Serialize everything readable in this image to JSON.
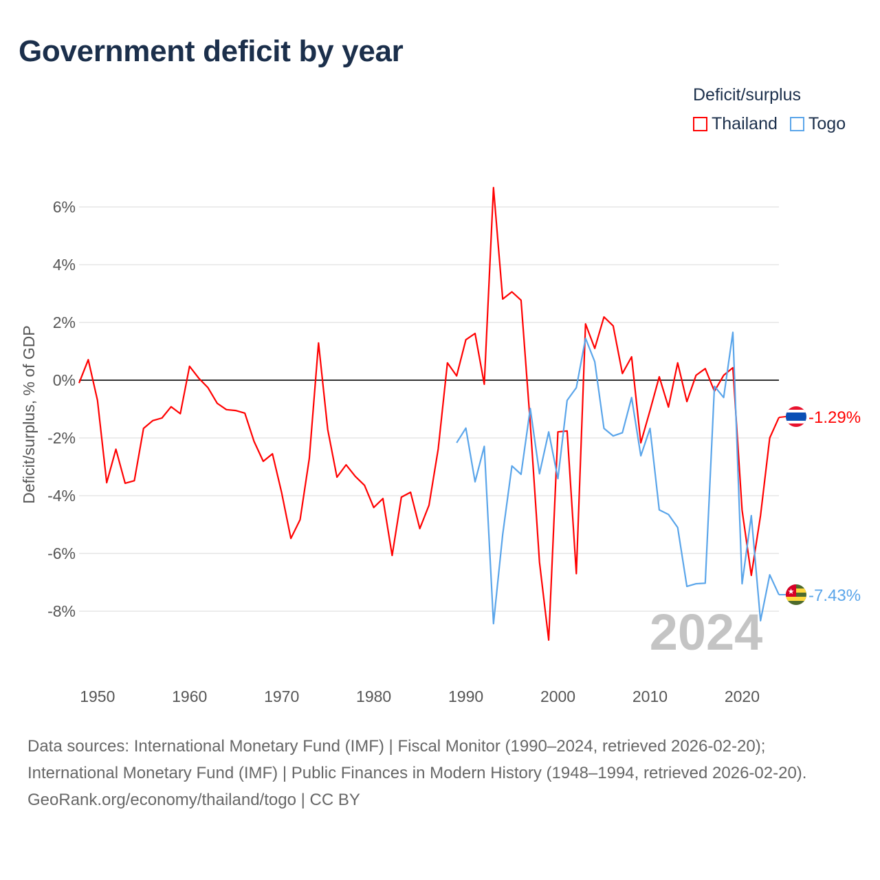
{
  "header": {
    "title": "Government deficit by year"
  },
  "legend": {
    "title": "Deficit/surplus"
  },
  "year_watermark": "2024",
  "footer": {
    "sources": "Data sources: International Monetary Fund (IMF) | Fiscal Monitor (1990–2024, retrieved 2026-02-20); International Monetary Fund (IMF) | Public Finances in Modern History (1948–1994, retrieved 2026-02-20).",
    "credit": "GeoRank.org/economy/thailand/togo | CC BY"
  },
  "chart_data": {
    "type": "line",
    "title": "Government deficit by year",
    "xlabel": "",
    "ylabel": "Deficit/surplus, % of GDP",
    "xlim": [
      1948,
      2024
    ],
    "ylim": [
      -10,
      7
    ],
    "x_ticks": [
      1950,
      1960,
      1970,
      1980,
      1990,
      2000,
      2010,
      2020
    ],
    "y_ticks": [
      6,
      4,
      2,
      0,
      -2,
      -4,
      -6,
      -8
    ],
    "y_tick_labels": [
      "6%",
      "4%",
      "2%",
      "0%",
      "-2%",
      "-4%",
      "-6%",
      "-8%"
    ],
    "grid": true,
    "legend_position": "top-right",
    "series": [
      {
        "name": "Thailand",
        "color": "#ff0000",
        "end_label": "-1.29%",
        "start_year": 1948,
        "values": [
          -0.1,
          0.71,
          -0.7,
          -3.55,
          -2.39,
          -3.57,
          -3.48,
          -1.67,
          -1.4,
          -1.31,
          -0.92,
          -1.16,
          0.48,
          0.07,
          -0.26,
          -0.8,
          -1.02,
          -1.05,
          -1.14,
          -2.12,
          -2.81,
          -2.55,
          -3.9,
          -5.48,
          -4.83,
          -2.71,
          1.29,
          -1.71,
          -3.36,
          -2.93,
          -3.33,
          -3.64,
          -4.41,
          -4.1,
          -6.07,
          -4.05,
          -3.88,
          -5.14,
          -4.33,
          -2.38,
          0.6,
          0.15,
          1.4,
          1.62,
          -0.14,
          6.67,
          2.81,
          3.06,
          2.77,
          -1.5,
          -6.3,
          -9.0,
          -1.79,
          -1.76,
          -6.7,
          1.95,
          1.1,
          2.19,
          1.88,
          0.23,
          0.81,
          -2.17,
          -1.05,
          0.12,
          -0.93,
          0.6,
          -0.74,
          0.17,
          0.4,
          -0.38,
          0.17,
          0.43,
          -4.5,
          -6.76,
          -4.69,
          -2.0,
          -1.29
        ]
      },
      {
        "name": "Togo",
        "color": "#5aa5ea",
        "end_label": "-7.43%",
        "start_year": 1989,
        "values": [
          -2.17,
          -1.66,
          -3.52,
          -2.29,
          -8.43,
          -5.34,
          -2.97,
          -3.26,
          -0.98,
          -3.24,
          -1.79,
          -3.41,
          -0.7,
          -0.26,
          1.45,
          0.64,
          -1.67,
          -1.93,
          -1.82,
          -0.6,
          -2.62,
          -1.67,
          -4.49,
          -4.65,
          -5.1,
          -7.14,
          -7.05,
          -7.03,
          -0.21,
          -0.6,
          1.66,
          -7.05,
          -4.69,
          -8.33,
          -6.74,
          -7.43
        ]
      }
    ]
  }
}
